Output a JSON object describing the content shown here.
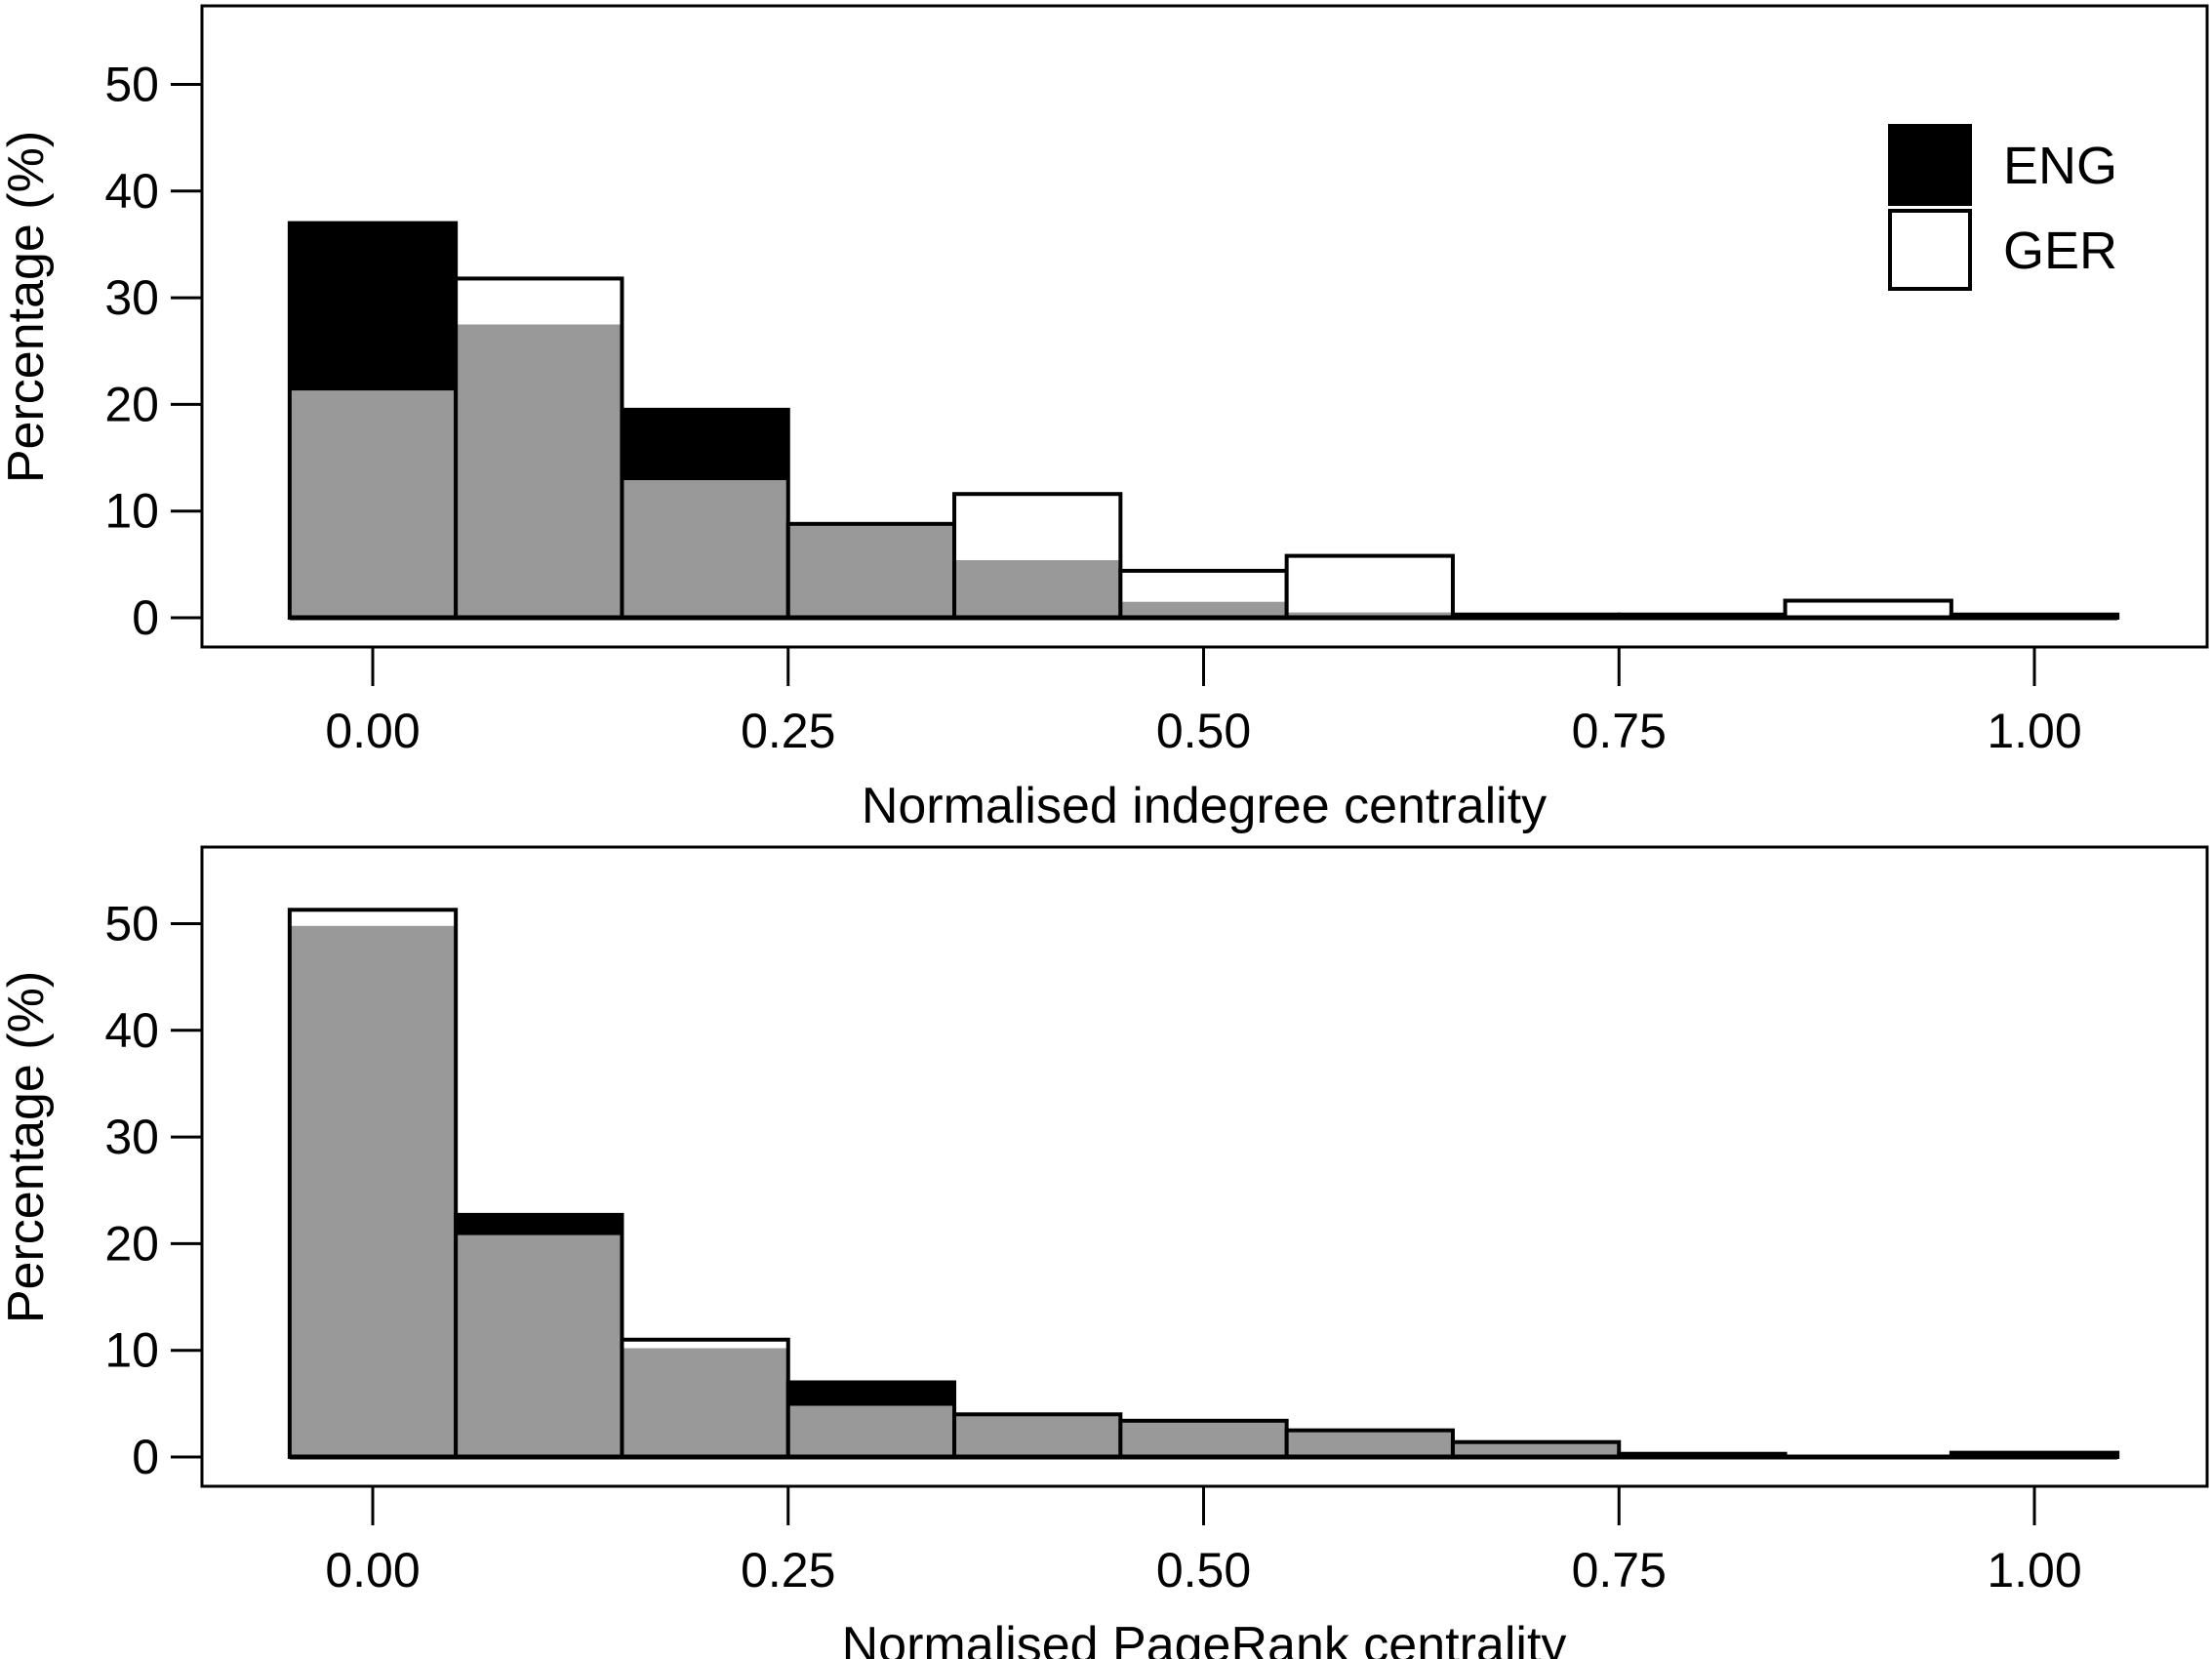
{
  "chart_data": [
    {
      "type": "bar",
      "xlabel": "Normalised indegree centrality",
      "ylabel": "Percentage (%)",
      "xlim": [
        -0.05,
        1.05
      ],
      "ylim": [
        0,
        55
      ],
      "x_ticks": [
        "0.00",
        "0.25",
        "0.50",
        "0.75",
        "1.00"
      ],
      "x_tick_values": [
        0,
        0.25,
        0.5,
        0.75,
        1.0
      ],
      "y_ticks": [
        0,
        10,
        20,
        30,
        40,
        50
      ],
      "bin_starts": [
        -0.05,
        0.05,
        0.15,
        0.25,
        0.35,
        0.45,
        0.55,
        0.65,
        0.75,
        0.85,
        0.95
      ],
      "bin_width": 0.1,
      "series": [
        {
          "name": "ENG",
          "values": [
            37.0,
            27.5,
            19.5,
            8.8,
            5.4,
            1.5,
            0.5,
            0.3,
            0.3,
            0.0,
            0.3
          ]
        },
        {
          "name": "GER",
          "values": [
            21.3,
            31.8,
            12.9,
            8.8,
            11.6,
            4.4,
            5.8,
            0.3,
            0.3,
            1.6,
            0.3
          ]
        }
      ],
      "legend": {
        "position": "top-right",
        "entries": [
          "ENG",
          "GER"
        ]
      },
      "colors": {
        "ENG": "#000000",
        "GER": "#ffffff",
        "overlap": "#999999"
      }
    },
    {
      "type": "bar",
      "xlabel": "Normalised PageRank centrality",
      "ylabel": "Percentage (%)",
      "xlim": [
        -0.05,
        1.05
      ],
      "ylim": [
        0,
        55
      ],
      "x_ticks": [
        "0.00",
        "0.25",
        "0.50",
        "0.75",
        "1.00"
      ],
      "x_tick_values": [
        0,
        0.25,
        0.5,
        0.75,
        1.0
      ],
      "y_ticks": [
        0,
        10,
        20,
        30,
        40,
        50
      ],
      "bin_starts": [
        -0.05,
        0.05,
        0.15,
        0.25,
        0.35,
        0.45,
        0.55,
        0.65,
        0.75,
        0.85,
        0.95
      ],
      "bin_width": 0.1,
      "series": [
        {
          "name": "ENG",
          "values": [
            49.8,
            22.7,
            10.2,
            7.0,
            4.0,
            3.4,
            2.5,
            1.4,
            0.3,
            0.0,
            0.4
          ]
        },
        {
          "name": "GER",
          "values": [
            51.3,
            20.8,
            11.0,
            4.8,
            4.0,
            3.4,
            2.5,
            1.4,
            0.3,
            0.0,
            0.0
          ]
        }
      ],
      "colors": {
        "ENG": "#000000",
        "GER": "#ffffff",
        "overlap": "#999999"
      }
    }
  ]
}
